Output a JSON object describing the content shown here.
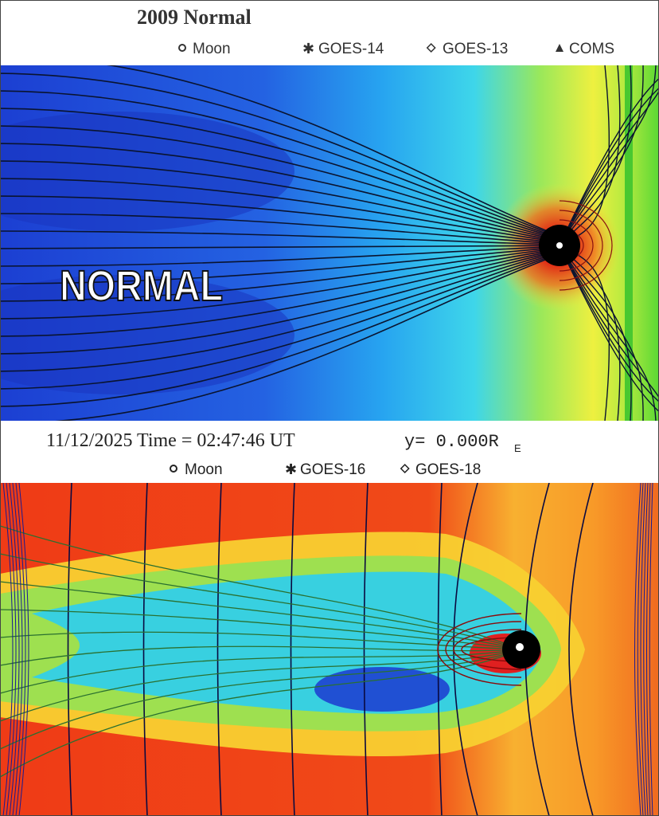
{
  "top": {
    "title": "2009 Normal",
    "legend": [
      "Moon",
      "GOES-14",
      "GOES-13",
      "COMS"
    ],
    "label": "NORMAL"
  },
  "bottom": {
    "time": "11/12/2025 Time = 02:47:46 UT",
    "coord": "y= 0.000R",
    "coord_sub": "E",
    "legend": [
      "Moon",
      "GOES-16",
      "GOES-18"
    ]
  }
}
